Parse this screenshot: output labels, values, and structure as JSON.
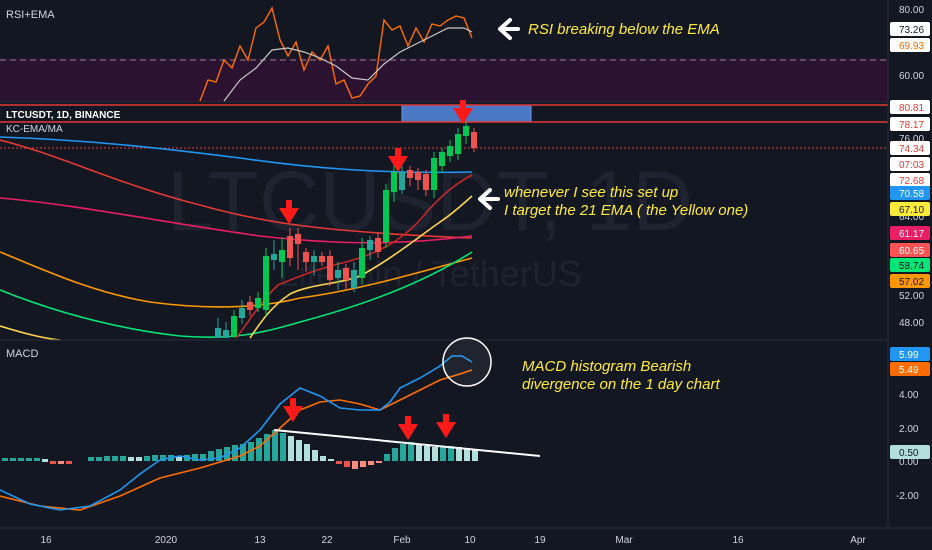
{
  "panes": {
    "rsi": {
      "title": "RSI+EMA",
      "ticks": [
        "80.00",
        "60.00"
      ],
      "badges": [
        {
          "text": "73.26",
          "bg": "#ffffff",
          "fg": "#131722"
        },
        {
          "text": "69.93",
          "bg": "#ffffff",
          "fg": "#ff6d00"
        }
      ]
    },
    "price": {
      "symbol": "LTCUSDT, 1D, BINANCE",
      "indicator": "KC-EMA/MA",
      "watermark": "LTCUSDT, 1D",
      "watermark_sub": "Litecoin / TetherUS",
      "ticks": [
        "76.00",
        "64.00",
        "52.00",
        "48.00"
      ],
      "badges": [
        {
          "text": "80.81",
          "bg": "#ffffff",
          "fg": "#e53935"
        },
        {
          "text": "78.17",
          "bg": "#ffffff",
          "fg": "#e53935"
        },
        {
          "text": "74.34",
          "bg": "#ffffff",
          "fg": "#e53935"
        },
        {
          "text": "07:03",
          "bg": "#ffffff",
          "fg": "#e53935"
        },
        {
          "text": "72.68",
          "bg": "#ffffff",
          "fg": "#e53935"
        },
        {
          "text": "70.58",
          "bg": "#2196f3",
          "fg": "#ffffff"
        },
        {
          "text": "67.10",
          "bg": "#ffeb3b",
          "fg": "#131722"
        },
        {
          "text": "61.17",
          "bg": "#e91e63",
          "fg": "#ffffff"
        },
        {
          "text": "60.65",
          "bg": "#ff5252",
          "fg": "#ffffff"
        },
        {
          "text": "58.74",
          "bg": "#00e676",
          "fg": "#131722"
        },
        {
          "text": "57.02",
          "bg": "#ff9800",
          "fg": "#131722"
        }
      ]
    },
    "macd": {
      "title": "MACD",
      "ticks": [
        "4.00",
        "2.00",
        "0.00",
        "-2.00"
      ],
      "badges": [
        {
          "text": "5.99",
          "bg": "#2196f3",
          "fg": "#ffffff"
        },
        {
          "text": "5.49",
          "bg": "#ff6d00",
          "fg": "#ffffff"
        },
        {
          "text": "0.50",
          "bg": "#b2dfdb",
          "fg": "#131722"
        }
      ]
    }
  },
  "time_axis": [
    "16",
    "2020",
    "13",
    "22",
    "Feb",
    "10",
    "19",
    "Mar",
    "16",
    "Apr"
  ],
  "annotations": {
    "rsi_note": "RSI breaking below the EMA",
    "ema_note_line1": "whenever I see this set up",
    "ema_note_line2": "I target the 21 EMA ( the Yellow one)",
    "macd_note_line1": "MACD histogram Bearish",
    "macd_note_line2": "divergence on the 1 day chart"
  },
  "colors": {
    "background": "#131722",
    "up": "#26a69a",
    "up_bright": "#00c853",
    "down": "#ef5350",
    "rsi_line": "#ff6d00",
    "ema200": "#2196f3",
    "ema21": "#ffeb3b",
    "ema_red": "#e53935",
    "ema_pink": "#e91e63",
    "ema_green": "#00e676",
    "ema_orange": "#ff9800",
    "resistance_box": "#4a78c4",
    "note_text": "#ffeb3b",
    "arrow": "#ff1a1a"
  }
}
